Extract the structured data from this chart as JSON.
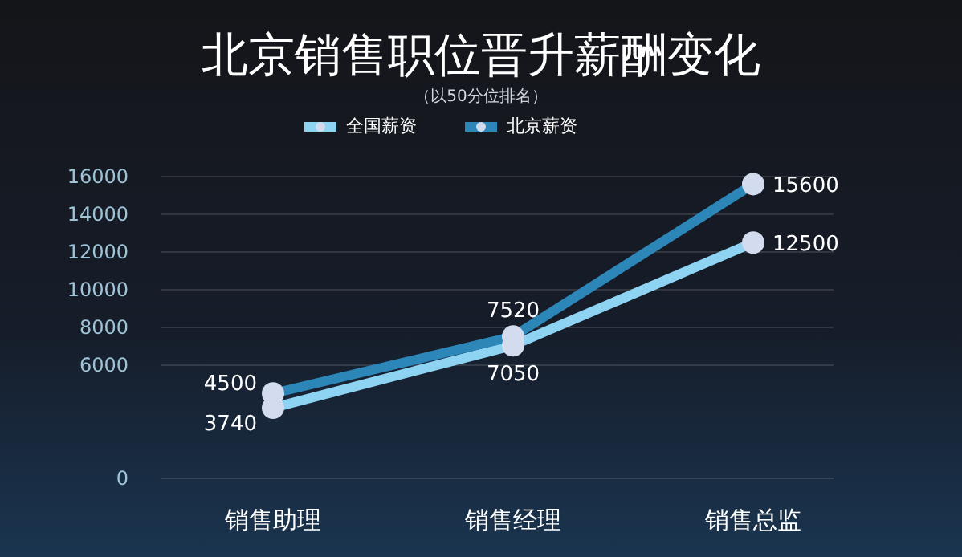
{
  "chart_data": {
    "type": "line",
    "title": "北京销售职位晋升薪酬变化",
    "subtitle": "（以50分位排名）",
    "categories": [
      "销售助理",
      "销售经理",
      "销售总监"
    ],
    "series": [
      {
        "name": "全国薪资",
        "color": "#8ed3f2",
        "values": [
          3740,
          7050,
          12500
        ]
      },
      {
        "name": "北京薪资",
        "color": "#2c86b8",
        "values": [
          4500,
          7520,
          15600
        ]
      }
    ],
    "ylim": [
      0,
      16000
    ],
    "yticks": [
      0,
      6000,
      8000,
      10000,
      12000,
      14000,
      16000
    ],
    "grid": "y",
    "legend": "top",
    "marker": "circle",
    "line_style": "solid",
    "data_labels": true
  }
}
